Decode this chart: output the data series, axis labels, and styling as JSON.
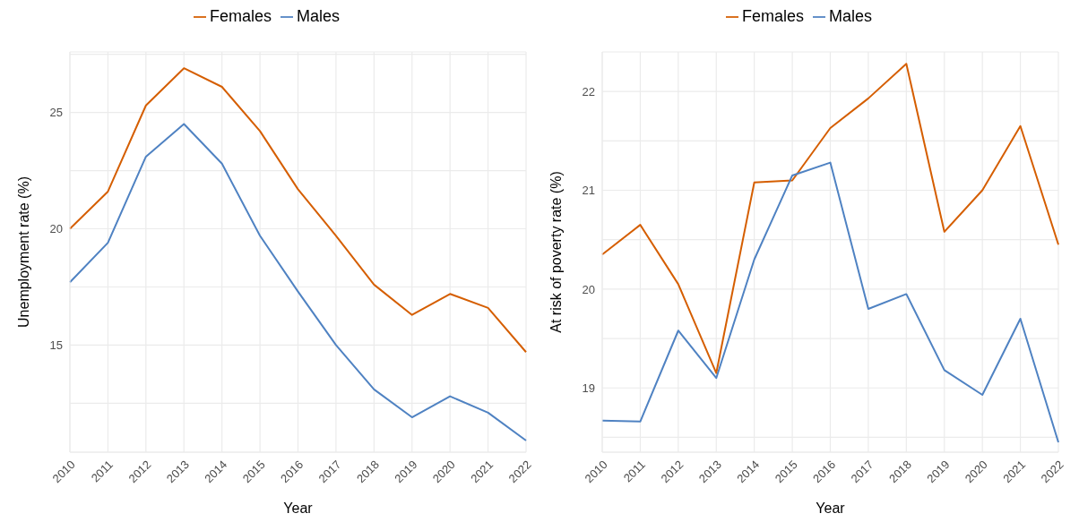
{
  "chart_data": [
    {
      "type": "line",
      "xlabel": "Year",
      "ylabel": "Unemployment rate (%)",
      "categories": [
        "2010",
        "2011",
        "2012",
        "2013",
        "2014",
        "2015",
        "2016",
        "2017",
        "2018",
        "2019",
        "2020",
        "2021",
        "2022"
      ],
      "series": [
        {
          "name": "Females",
          "color": "#d55e00",
          "values": [
            20.0,
            21.6,
            25.3,
            26.9,
            26.1,
            24.2,
            21.7,
            19.7,
            17.6,
            16.3,
            17.2,
            16.6,
            14.7
          ]
        },
        {
          "name": "Males",
          "color": "#4f82c2",
          "values": [
            17.7,
            19.4,
            23.1,
            24.5,
            22.8,
            19.7,
            17.3,
            15.0,
            13.1,
            11.9,
            12.8,
            12.1,
            10.9
          ]
        }
      ],
      "ylim": [
        10.4,
        27.6
      ],
      "yticks": [
        {
          "value": 12.5,
          "label": null
        },
        15,
        {
          "value": 17.5,
          "label": null
        },
        20,
        {
          "value": 22.5,
          "label": null
        },
        25,
        {
          "value": 27.5,
          "label": null
        }
      ],
      "grid": true,
      "legend": "top",
      "marker": "none",
      "line_style": "solid"
    },
    {
      "type": "line",
      "xlabel": "Year",
      "ylabel": "At risk of poverty rate (%)",
      "categories": [
        "2010",
        "2011",
        "2012",
        "2013",
        "2014",
        "2015",
        "2016",
        "2017",
        "2018",
        "2019",
        "2020",
        "2021",
        "2022"
      ],
      "series": [
        {
          "name": "Females",
          "color": "#d55e00",
          "values": [
            20.35,
            20.65,
            20.05,
            19.15,
            21.08,
            21.1,
            21.63,
            21.93,
            22.28,
            20.58,
            21.0,
            21.65,
            20.45
          ]
        },
        {
          "name": "Males",
          "color": "#4f82c2",
          "values": [
            18.67,
            18.66,
            19.58,
            19.1,
            20.3,
            21.15,
            21.28,
            19.8,
            19.95,
            19.18,
            18.93,
            19.7,
            18.45
          ]
        }
      ],
      "ylim": [
        18.35,
        22.4
      ],
      "yticks": [
        {
          "value": 18.5,
          "label": null
        },
        19,
        {
          "value": 19.5,
          "label": null
        },
        20,
        {
          "value": 20.5,
          "label": null
        },
        21,
        {
          "value": 21.5,
          "label": null
        },
        22
      ],
      "grid": true,
      "legend": "top",
      "marker": "none",
      "line_style": "solid"
    }
  ]
}
